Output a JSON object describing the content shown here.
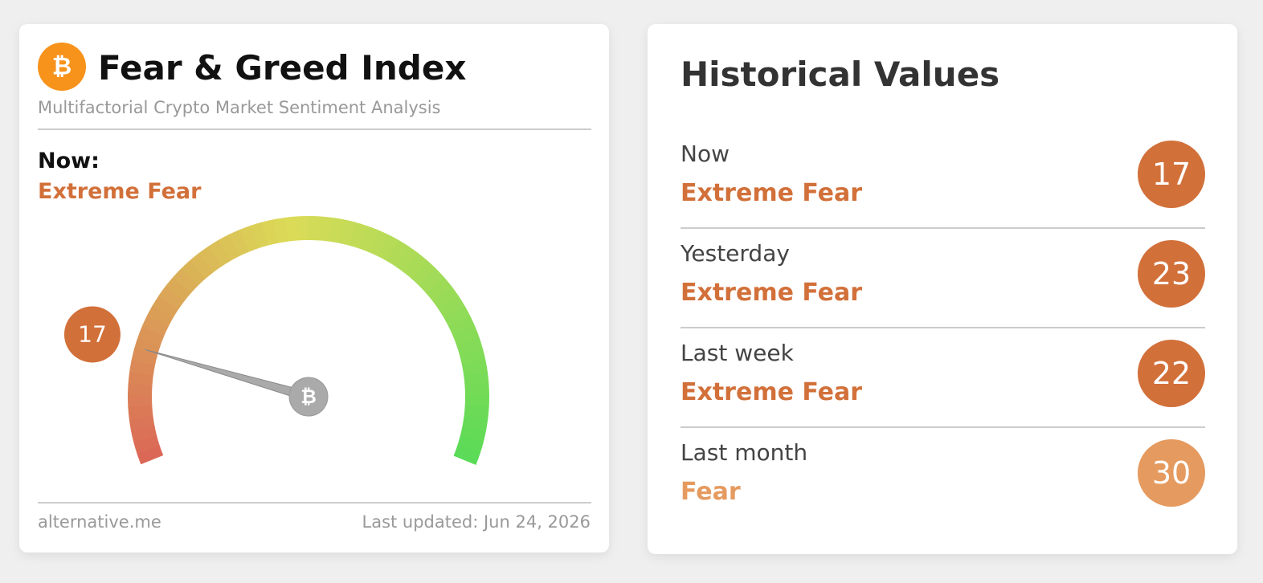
{
  "index_card": {
    "title": "Fear & Greed Index",
    "subtitle": "Multifactorial Crypto Market Sentiment Analysis",
    "now_label": "Now:",
    "now_class": "Extreme Fear",
    "now_color": "#d2703a",
    "value": 17,
    "source": "alternative.me",
    "updated": "Last updated: Jun 24, 2026"
  },
  "history": {
    "title": "Historical Values",
    "rows": [
      {
        "period": "Now",
        "class": "Extreme Fear",
        "value": 17,
        "color": "#d2703a"
      },
      {
        "period": "Yesterday",
        "class": "Extreme Fear",
        "value": 23,
        "color": "#d2703a"
      },
      {
        "period": "Last week",
        "class": "Extreme Fear",
        "value": 22,
        "color": "#d2703a"
      },
      {
        "period": "Last month",
        "class": "Fear",
        "value": 30,
        "color": "#e59a5f"
      }
    ]
  }
}
